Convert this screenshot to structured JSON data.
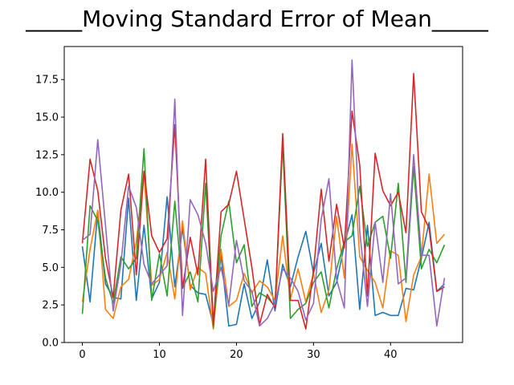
{
  "chart_data": {
    "type": "line",
    "title": "_____Moving Standard Error of Mean_____",
    "xlabel": "",
    "ylabel": "",
    "xlim": [
      -2.35,
      49.35
    ],
    "ylim": [
      0,
      19.7
    ],
    "xticks": [
      0,
      10,
      20,
      30,
      40
    ],
    "yticks": [
      0.0,
      2.5,
      5.0,
      7.5,
      10.0,
      12.5,
      15.0,
      17.5
    ],
    "ytick_labels": [
      "0.0",
      "2.5",
      "5.0",
      "7.5",
      "10.0",
      "12.5",
      "15.0",
      "17.5"
    ],
    "grid": false,
    "legend": "none",
    "series": [
      {
        "color": "#1f77b4",
        "values": [
          6.4,
          2.7,
          8.8,
          3.9,
          3.0,
          2.9,
          9.6,
          2.8,
          7.8,
          2.9,
          4.0,
          9.7,
          3.7,
          7.6,
          3.8,
          3.3,
          3.2,
          1.2,
          5.8,
          1.1,
          1.2,
          3.9,
          1.6,
          2.7,
          5.5,
          2.1,
          5.2,
          3.7,
          5.7,
          7.4,
          4.6,
          6.6,
          3.1,
          4.0,
          6.5,
          8.5,
          2.2,
          7.8,
          1.8,
          2.0,
          1.8,
          1.8,
          3.6,
          3.5,
          5.6,
          8.0,
          3.4,
          3.9
        ]
      },
      {
        "color": "#ff7f0e",
        "values": [
          2.7,
          6.2,
          8.8,
          2.2,
          1.6,
          3.7,
          4.2,
          6.7,
          11.3,
          3.8,
          4.2,
          6.0,
          2.9,
          8.1,
          3.5,
          5.0,
          4.6,
          0.9,
          6.2,
          2.4,
          2.8,
          4.6,
          3.3,
          4.1,
          3.7,
          2.8,
          7.1,
          2.9,
          4.9,
          2.7,
          4.6,
          2.0,
          3.5,
          8.4,
          4.3,
          13.2,
          5.7,
          4.8,
          4.0,
          2.3,
          6.1,
          5.8,
          1.4,
          4.5,
          5.7,
          11.2,
          6.6,
          7.2
        ]
      },
      {
        "color": "#2ca02c",
        "values": [
          1.9,
          9.1,
          8.1,
          4.3,
          2.6,
          5.7,
          4.9,
          5.6,
          12.9,
          2.8,
          5.9,
          3.1,
          9.4,
          3.6,
          4.7,
          2.7,
          10.6,
          1.0,
          7.1,
          9.4,
          5.3,
          6.5,
          2.4,
          3.3,
          3.0,
          2.4,
          13.2,
          1.6,
          2.2,
          2.6,
          4.0,
          4.7,
          2.3,
          4.9,
          6.7,
          7.1,
          10.4,
          6.4,
          8.0,
          8.4,
          5.6,
          10.6,
          4.0,
          11.7,
          4.9,
          6.2,
          5.3,
          6.5
        ]
      },
      {
        "color": "#d62728",
        "values": [
          6.6,
          12.2,
          10.1,
          5.6,
          3.0,
          8.8,
          11.2,
          4.5,
          11.4,
          7.1,
          6.0,
          6.9,
          14.5,
          3.6,
          7.0,
          4.5,
          12.2,
          1.2,
          8.7,
          9.2,
          11.4,
          8.2,
          5.0,
          1.2,
          3.2,
          2.3,
          13.9,
          2.8,
          2.8,
          0.9,
          4.8,
          10.2,
          5.4,
          9.2,
          6.3,
          15.4,
          11.8,
          3.1,
          12.6,
          10.1,
          9.1,
          10.0,
          7.3,
          17.9,
          8.7,
          7.6,
          3.4,
          3.7
        ]
      },
      {
        "color": "#9467bd",
        "values": [
          6.8,
          7.2,
          13.5,
          7.8,
          2.1,
          5.2,
          10.4,
          9.0,
          5.2,
          3.9,
          4.5,
          5.1,
          16.2,
          1.8,
          9.5,
          8.5,
          6.6,
          3.4,
          5.0,
          2.5,
          6.8,
          4.1,
          3.4,
          1.1,
          1.6,
          2.6,
          4.9,
          4.3,
          3.4,
          1.5,
          2.6,
          8.2,
          10.9,
          4.2,
          2.3,
          18.8,
          7.4,
          2.4,
          8.0,
          4.0,
          9.9,
          3.9,
          4.3,
          12.5,
          5.8,
          5.8,
          1.1,
          4.3
        ]
      }
    ]
  }
}
